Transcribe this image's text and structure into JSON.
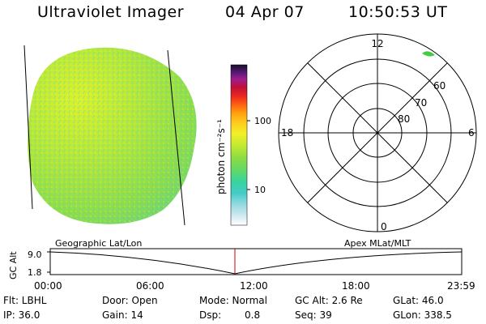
{
  "header": {
    "title": "Ultraviolet Imager",
    "date": "04 Apr 07",
    "time": "10:50:53 UT"
  },
  "colorbar": {
    "label": "photon cm⁻²s⁻¹",
    "ticks": [
      "100",
      "10"
    ]
  },
  "polar_plot": {
    "mlt_labels": [
      "12",
      "18",
      "6",
      "0"
    ],
    "lat_labels": [
      "60",
      "70",
      "80"
    ]
  },
  "timeline": {
    "left_caption": "Geographic Lat/Lon",
    "right_caption": "Apex MLat/MLT",
    "y_axis_label": "GC Alt",
    "y_ticks": [
      "9.0",
      "1.8"
    ],
    "x_ticks": [
      "00:00",
      "06:00",
      "12:00",
      "18:00",
      "23:59"
    ],
    "current_time_marker": "10:50:53"
  },
  "info": {
    "flt": "Flt: LBHL",
    "ip": "IP: 36.0",
    "door": "Door: Open",
    "gain": "Gain: 14",
    "mode": "Mode: Normal",
    "dsp_label": "Dsp:",
    "dsp_value": "0.8",
    "gc_alt": "GC Alt: 2.6 Re",
    "seq": "Seq: 39",
    "glat": "GLat:  46.0",
    "glon": "GLon: 338.5"
  },
  "colors": {
    "disk_base": "#8fdc4a",
    "disk_bright": "#d8f030",
    "disk_edge": "#55d59a",
    "marker": "#cc0000",
    "polar_spot": "#44cc44"
  }
}
